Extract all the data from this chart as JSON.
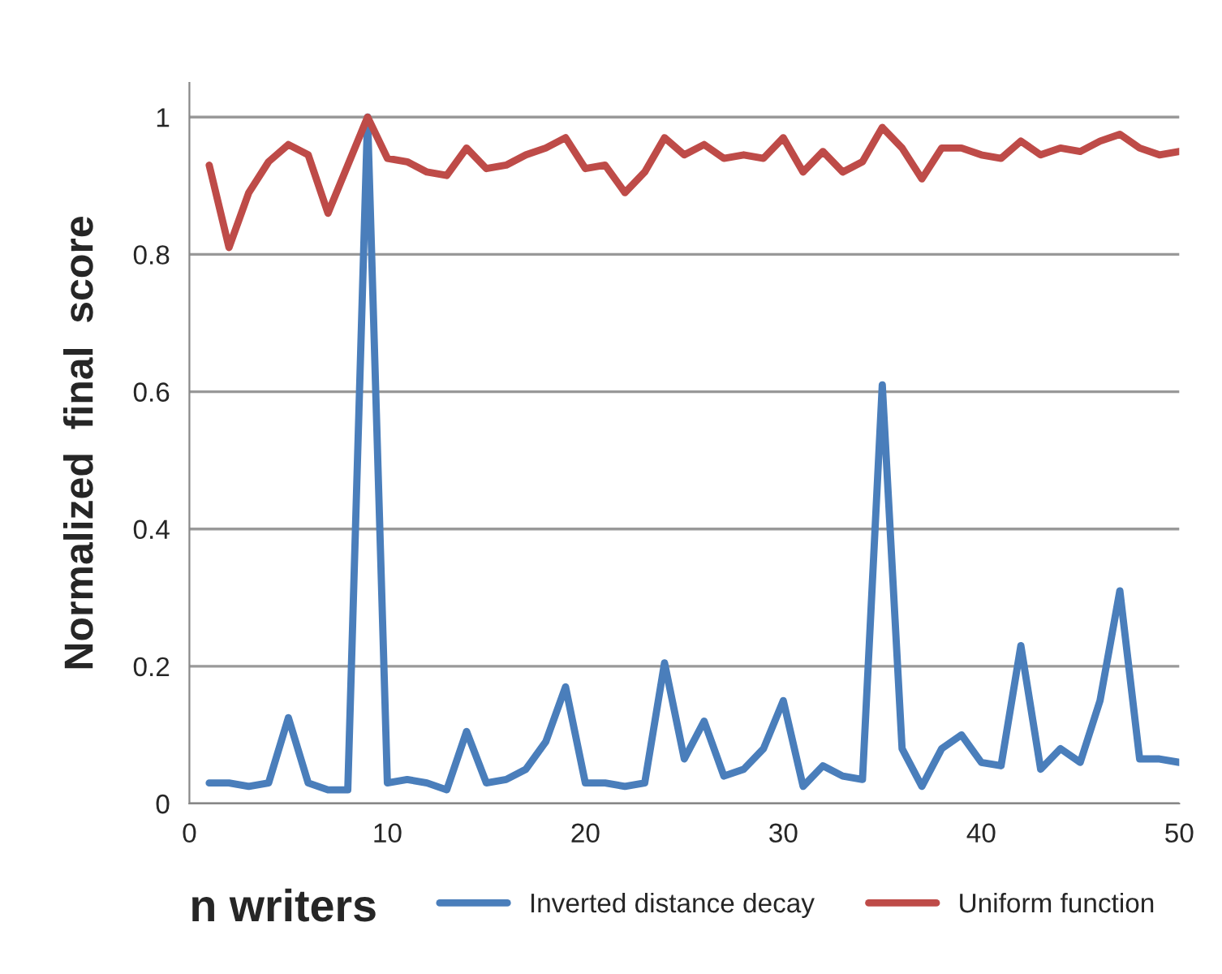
{
  "chart_data": {
    "type": "line",
    "xlabel": "n writers",
    "ylabel": "Normalized  final  score",
    "x": [
      1,
      2,
      3,
      4,
      5,
      6,
      7,
      8,
      9,
      10,
      11,
      12,
      13,
      14,
      15,
      16,
      17,
      18,
      19,
      20,
      21,
      22,
      23,
      24,
      25,
      26,
      27,
      28,
      29,
      30,
      31,
      32,
      33,
      34,
      35,
      36,
      37,
      38,
      39,
      40,
      41,
      42,
      43,
      44,
      45,
      46,
      47,
      48,
      49,
      50
    ],
    "series": [
      {
        "name": "Inverted distance decay",
        "color": "#4a7ebb",
        "values": [
          0.03,
          0.03,
          0.025,
          0.03,
          0.125,
          0.03,
          0.02,
          0.02,
          1.0,
          0.03,
          0.035,
          0.03,
          0.02,
          0.105,
          0.03,
          0.035,
          0.05,
          0.09,
          0.17,
          0.03,
          0.03,
          0.025,
          0.03,
          0.205,
          0.065,
          0.12,
          0.04,
          0.05,
          0.08,
          0.15,
          0.025,
          0.055,
          0.04,
          0.035,
          0.61,
          0.08,
          0.025,
          0.08,
          0.1,
          0.06,
          0.055,
          0.23,
          0.05,
          0.08,
          0.06,
          0.15,
          0.31,
          0.065,
          0.065,
          0.06
        ]
      },
      {
        "name": "Uniform function",
        "color": "#be4b48",
        "values": [
          0.93,
          0.81,
          0.89,
          0.935,
          0.96,
          0.945,
          0.86,
          0.93,
          1.0,
          0.94,
          0.935,
          0.92,
          0.915,
          0.955,
          0.925,
          0.93,
          0.945,
          0.955,
          0.97,
          0.925,
          0.93,
          0.89,
          0.92,
          0.97,
          0.945,
          0.96,
          0.94,
          0.945,
          0.94,
          0.97,
          0.92,
          0.95,
          0.92,
          0.935,
          0.985,
          0.955,
          0.91,
          0.955,
          0.955,
          0.945,
          0.94,
          0.965,
          0.945,
          0.955,
          0.95,
          0.965,
          0.975,
          0.955,
          0.945,
          0.95
        ]
      }
    ],
    "xlim": [
      0,
      50
    ],
    "xticks": [
      0,
      10,
      20,
      30,
      40,
      50
    ],
    "ylim": [
      0,
      1.05
    ],
    "yticks": [
      0,
      0.2,
      0.4,
      0.6,
      0.8,
      1
    ],
    "grid": "y",
    "legend": "bottom",
    "marker": "none",
    "line_style": "solid"
  }
}
